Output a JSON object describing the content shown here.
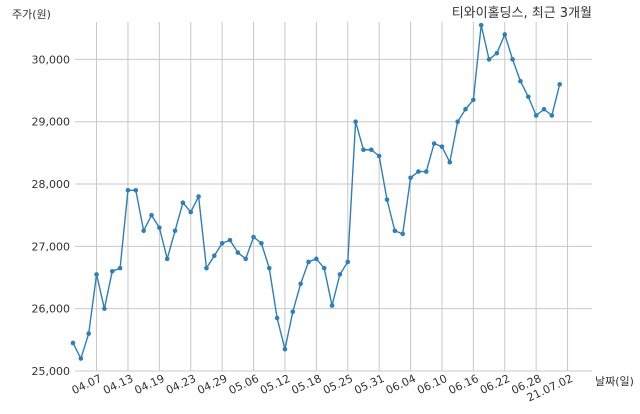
{
  "chart_data": {
    "type": "line",
    "title": "티와이홀딩스, 최근 3개월",
    "ylabel": "주가(원)",
    "xlabel": "날짜(일)",
    "ylim": [
      25000,
      30600
    ],
    "yticks": [
      25000,
      26000,
      27000,
      28000,
      29000,
      30000
    ],
    "ytick_labels": [
      "25,000",
      "26,000",
      "27,000",
      "28,000",
      "29,000",
      "30,000"
    ],
    "xtick_labels": [
      "04.07",
      "04.13",
      "04.19",
      "04.23",
      "04.29",
      "05.06",
      "05.12",
      "05.18",
      "05.25",
      "05.31",
      "06.04",
      "06.10",
      "06.16",
      "06.22",
      "06.28",
      "21.07.02"
    ],
    "xtick_index": [
      3,
      7,
      11,
      15,
      19,
      23,
      27,
      31,
      35,
      39,
      43,
      47,
      51,
      55,
      59,
      63
    ],
    "grid": true,
    "color": "#2e7fb8",
    "series": [
      {
        "values": [
          25450,
          25200,
          25600,
          26550,
          26000,
          26600,
          26650,
          27900,
          27900,
          27250,
          27500,
          27300,
          26800,
          27250,
          27700,
          27550,
          27800,
          26650,
          26850,
          27050,
          27100,
          26900,
          26800,
          27150,
          27050,
          26650,
          25850,
          25350,
          25950,
          26400,
          26750,
          26800,
          26650,
          26050,
          26550,
          26750,
          29000,
          28550,
          28550,
          28450,
          27750,
          27250,
          27200,
          28100,
          28200,
          28200,
          28650,
          28600,
          28350,
          29000,
          29200,
          29350,
          30550,
          30000,
          30100,
          30400,
          30000,
          29650,
          29400,
          29100,
          29200,
          29100,
          29600
        ]
      }
    ]
  }
}
